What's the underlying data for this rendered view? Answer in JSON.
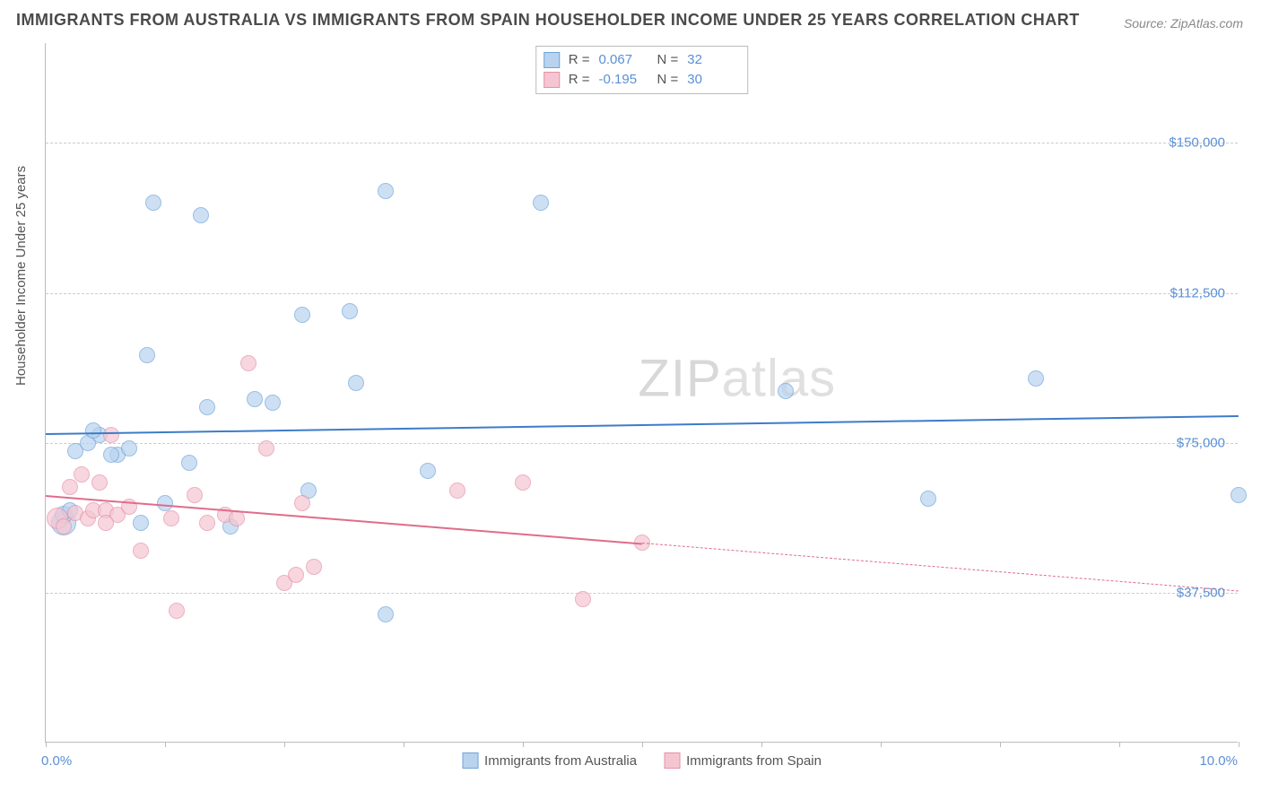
{
  "title": "IMMIGRANTS FROM AUSTRALIA VS IMMIGRANTS FROM SPAIN HOUSEHOLDER INCOME UNDER 25 YEARS CORRELATION CHART",
  "source": "Source: ZipAtlas.com",
  "ylabel": "Householder Income Under 25 years",
  "watermark_bold": "ZIP",
  "watermark_thin": "atlas",
  "chart": {
    "type": "scatter",
    "xlim": [
      0,
      10
    ],
    "ylim": [
      0,
      175000
    ],
    "x_tick_positions": [
      0,
      1,
      2,
      3,
      4,
      5,
      6,
      7,
      8,
      9,
      10
    ],
    "x_min_label": "0.0%",
    "x_max_label": "10.0%",
    "y_gridlines": [
      37500,
      75000,
      112500,
      150000
    ],
    "y_tick_labels": [
      "$37,500",
      "$75,000",
      "$112,500",
      "$150,000"
    ],
    "background_color": "#ffffff",
    "grid_color": "#cccccc",
    "axis_color": "#bbbbbb",
    "tick_label_color": "#5b8fd6",
    "marker_radius": 9,
    "marker_stroke_width": 1.2,
    "marker_fill_opacity": 0.35,
    "series": [
      {
        "name": "Immigrants from Australia",
        "stroke": "#6fa3db",
        "fill": "#b9d3ee",
        "line_color": "#3d7cc9",
        "r_label": "R =",
        "r_value": "0.067",
        "n_label": "N =",
        "n_value": "32",
        "regression": {
          "x1": 0,
          "y1": 77500,
          "x2": 10,
          "y2": 82000,
          "solid_until_x": 10
        },
        "points": [
          [
            0.15,
            55000,
            14
          ],
          [
            0.15,
            57000,
            10
          ],
          [
            0.25,
            73000,
            9
          ],
          [
            0.35,
            75000,
            9
          ],
          [
            0.45,
            77000,
            9
          ],
          [
            0.6,
            72000,
            9
          ],
          [
            0.7,
            73500,
            9
          ],
          [
            0.85,
            97000,
            9
          ],
          [
            0.9,
            135000,
            9
          ],
          [
            1.2,
            70000,
            9
          ],
          [
            1.3,
            132000,
            9
          ],
          [
            1.35,
            84000,
            9
          ],
          [
            1.55,
            54000,
            9
          ],
          [
            1.75,
            86000,
            9
          ],
          [
            1.9,
            85000,
            9
          ],
          [
            2.15,
            107000,
            9
          ],
          [
            2.2,
            63000,
            9
          ],
          [
            2.55,
            108000,
            9
          ],
          [
            2.6,
            90000,
            9
          ],
          [
            2.85,
            138000,
            9
          ],
          [
            2.85,
            32000,
            9
          ],
          [
            3.2,
            68000,
            9
          ],
          [
            4.15,
            135000,
            9
          ],
          [
            6.2,
            88000,
            9
          ],
          [
            7.4,
            61000,
            9
          ],
          [
            8.3,
            91000,
            9
          ],
          [
            10.0,
            62000,
            9
          ],
          [
            0.4,
            78000,
            9
          ],
          [
            0.55,
            72000,
            9
          ],
          [
            0.8,
            55000,
            9
          ],
          [
            1.0,
            60000,
            9
          ],
          [
            0.2,
            58000,
            9
          ]
        ]
      },
      {
        "name": "Immigrants from Spain",
        "stroke": "#e591a6",
        "fill": "#f5c6d2",
        "line_color": "#e06c8b",
        "r_label": "R =",
        "r_value": "-0.195",
        "n_label": "N =",
        "n_value": "30",
        "regression": {
          "x1": 0,
          "y1": 62000,
          "x2": 10,
          "y2": 38000,
          "solid_until_x": 5
        },
        "points": [
          [
            0.1,
            56000,
            12
          ],
          [
            0.2,
            64000,
            9
          ],
          [
            0.25,
            57500,
            9
          ],
          [
            0.3,
            67000,
            9
          ],
          [
            0.35,
            56000,
            9
          ],
          [
            0.4,
            58000,
            9
          ],
          [
            0.45,
            65000,
            9
          ],
          [
            0.5,
            58000,
            9
          ],
          [
            0.55,
            77000,
            9
          ],
          [
            0.6,
            57000,
            9
          ],
          [
            0.7,
            59000,
            9
          ],
          [
            0.8,
            48000,
            9
          ],
          [
            1.05,
            56000,
            9
          ],
          [
            1.1,
            33000,
            9
          ],
          [
            1.25,
            62000,
            9
          ],
          [
            1.35,
            55000,
            9
          ],
          [
            1.5,
            57000,
            9
          ],
          [
            1.6,
            56000,
            9
          ],
          [
            1.7,
            95000,
            9
          ],
          [
            1.85,
            73500,
            9
          ],
          [
            2.0,
            40000,
            9
          ],
          [
            2.1,
            42000,
            9
          ],
          [
            2.15,
            60000,
            9
          ],
          [
            2.25,
            44000,
            9
          ],
          [
            3.45,
            63000,
            9
          ],
          [
            4.0,
            65000,
            9
          ],
          [
            4.5,
            36000,
            9
          ],
          [
            5.0,
            50000,
            9
          ],
          [
            0.15,
            54000,
            9
          ],
          [
            0.5,
            55000,
            9
          ]
        ]
      }
    ]
  }
}
